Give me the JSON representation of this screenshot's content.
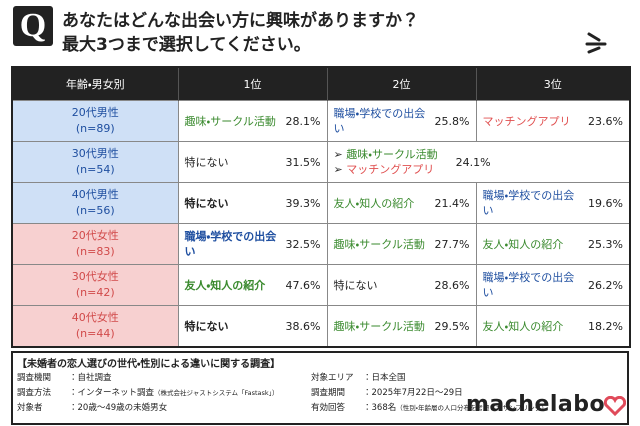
{
  "header": {
    "icon": "Q",
    "lines": [
      "あなたはどんな出会い方に興味がありますか？",
      "最大3つまで選択してください。"
    ]
  },
  "table": {
    "columns": [
      "年齢・男女別",
      "1位",
      "2位",
      "3位"
    ],
    "rows": [
      {
        "group": "20代男性",
        "n": "(n=89)",
        "sex": "m",
        "cells": [
          {
            "items": [
              {
                "text": "趣味・サークル活動",
                "color": "#3a8a2e",
                "bold": false
              }
            ],
            "pct": "28.1%"
          },
          {
            "items": [
              {
                "text": "職場・学校での出会い",
                "color": "#1f4fa0",
                "bold": false
              }
            ],
            "pct": "25.8%"
          },
          {
            "items": [
              {
                "text": "マッチングアプリ",
                "color": "#e05050",
                "bold": false
              }
            ],
            "pct": "23.6%"
          }
        ]
      },
      {
        "group": "30代男性",
        "n": "(n=54)",
        "sex": "m",
        "cells": [
          {
            "items": [
              {
                "text": "特にない",
                "color": "#222222",
                "bold": false
              }
            ],
            "pct": "31.5%"
          },
          {
            "items": [
              {
                "text": "趣味・サークル活動",
                "color": "#3a8a2e",
                "bold": false
              },
              {
                "text": "マッチングアプリ",
                "color": "#e05050",
                "bold": false
              }
            ],
            "pct": "24.1%"
          }
        ]
      },
      {
        "group": "40代男性",
        "n": "(n=56)",
        "sex": "m",
        "cells": [
          {
            "items": [
              {
                "text": "特にない",
                "color": "#222222",
                "bold": true
              }
            ],
            "pct": "39.3%"
          },
          {
            "items": [
              {
                "text": "友人・知人の紹介",
                "color": "#3a8a2e",
                "bold": false
              }
            ],
            "pct": "21.4%"
          },
          {
            "items": [
              {
                "text": "職場・学校での出会い",
                "color": "#1f4fa0",
                "bold": false
              }
            ],
            "pct": "19.6%"
          }
        ]
      },
      {
        "group": "20代女性",
        "n": "(n=83)",
        "sex": "f",
        "cells": [
          {
            "items": [
              {
                "text": "職場・学校での出会い",
                "color": "#1f4fa0",
                "bold": true
              }
            ],
            "pct": "32.5%"
          },
          {
            "items": [
              {
                "text": "趣味・サークル活動",
                "color": "#3a8a2e",
                "bold": false
              }
            ],
            "pct": "27.7%"
          },
          {
            "items": [
              {
                "text": "友人・知人の紹介",
                "color": "#3a8a2e",
                "bold": false
              }
            ],
            "pct": "25.3%"
          }
        ]
      },
      {
        "group": "30代女性",
        "n": "(n=42)",
        "sex": "f",
        "cells": [
          {
            "items": [
              {
                "text": "友人・知人の紹介",
                "color": "#3a8a2e",
                "bold": true
              }
            ],
            "pct": "47.6%"
          },
          {
            "items": [
              {
                "text": "特にない",
                "color": "#222222",
                "bold": false
              }
            ],
            "pct": "28.6%"
          },
          {
            "items": [
              {
                "text": "職場・学校での出会い",
                "color": "#1f4fa0",
                "bold": false
              }
            ],
            "pct": "26.2%"
          }
        ]
      },
      {
        "group": "40代女性",
        "n": "(n=44)",
        "sex": "f",
        "cells": [
          {
            "items": [
              {
                "text": "特にない",
                "color": "#222222",
                "bold": true
              }
            ],
            "pct": "38.6%"
          },
          {
            "items": [
              {
                "text": "趣味・サークル活動",
                "color": "#3a8a2e",
                "bold": false
              }
            ],
            "pct": "29.5%"
          },
          {
            "items": [
              {
                "text": "友人・知人の紹介",
                "color": "#3a8a2e",
                "bold": false
              }
            ],
            "pct": "18.2%"
          }
        ]
      }
    ]
  },
  "footer": {
    "title": "【未婚者の恋人選びの世代・性別による違いに関する調査】",
    "items": [
      {
        "label": "調査機関",
        "value": "：自社調査"
      },
      {
        "label": "対象エリア",
        "value": "：日本全国"
      },
      {
        "label": "調査方法",
        "value": "：インターネット調査",
        "note": "（株式会社ジャストシステム「Fastask」）"
      },
      {
        "label": "調査期間",
        "value": "：2025年7月22日～29日"
      },
      {
        "label": "対象者",
        "value": "：20歳～49歳の未婚男女"
      },
      {
        "label": "有効回答",
        "value": "：368名",
        "note": "（性別・年齢層の人口分布を考慮したサンプリング）"
      }
    ],
    "logo": "machelabo"
  }
}
